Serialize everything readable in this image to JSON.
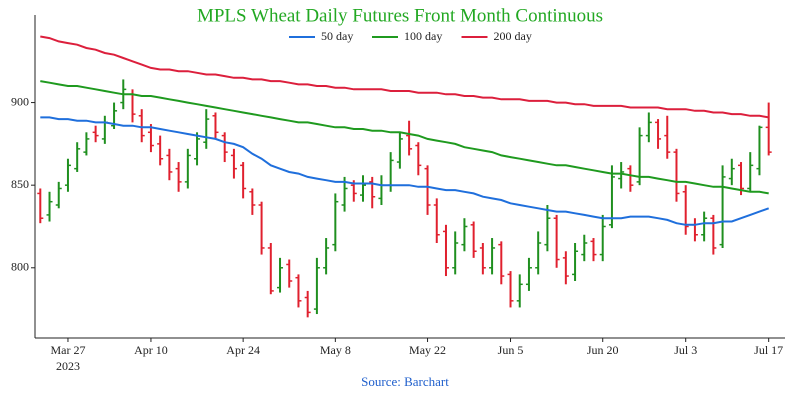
{
  "chart_data": {
    "type": "ohlc",
    "title": "MPLS Wheat Daily Futures Front Month Continuous",
    "source": "Source: Barchart",
    "categories": [
      null,
      null,
      null,
      "Mar 27",
      null,
      null,
      null,
      null,
      null,
      null,
      null,
      null,
      "Apr 10",
      null,
      null,
      null,
      null,
      null,
      null,
      null,
      null,
      null,
      "Apr 24",
      null,
      null,
      null,
      null,
      null,
      null,
      null,
      null,
      null,
      "May 8",
      null,
      null,
      null,
      null,
      null,
      null,
      null,
      null,
      null,
      "May 22",
      null,
      null,
      null,
      null,
      null,
      null,
      null,
      null,
      "Jun 5",
      null,
      null,
      null,
      null,
      null,
      null,
      null,
      null,
      null,
      "Jun 20",
      null,
      null,
      null,
      null,
      null,
      null,
      null,
      null,
      "Jul 3",
      null,
      null,
      null,
      null,
      null,
      null,
      null,
      null,
      "Jul 17"
    ],
    "x_year": "2023",
    "ohlc": {
      "up_color": "#1f8f1f",
      "down_color": "#e0202e",
      "open": [
        845,
        832,
        838,
        850,
        860,
        870,
        882,
        878,
        886,
        900,
        905,
        892,
        882,
        875,
        868,
        860,
        852,
        866,
        876,
        892,
        880,
        868,
        862,
        846,
        838,
        812,
        788,
        802,
        794,
        782,
        775,
        800,
        814,
        838,
        850,
        844,
        852,
        842,
        850,
        864,
        880,
        874,
        860,
        838,
        822,
        800,
        814,
        826,
        812,
        800,
        814,
        796,
        780,
        790,
        800,
        814,
        830,
        806,
        796,
        808,
        816,
        808,
        826,
        854,
        860,
        852,
        880,
        888,
        880,
        870,
        846,
        826,
        820,
        830,
        814,
        854,
        862,
        848,
        860,
        885
      ],
      "high": [
        848,
        846,
        852,
        866,
        876,
        882,
        886,
        892,
        900,
        914,
        908,
        896,
        887,
        880,
        872,
        864,
        872,
        882,
        896,
        894,
        882,
        872,
        864,
        848,
        840,
        815,
        806,
        805,
        796,
        786,
        806,
        818,
        845,
        855,
        853,
        856,
        855,
        856,
        870,
        882,
        889,
        876,
        862,
        842,
        826,
        822,
        830,
        828,
        815,
        818,
        816,
        798,
        796,
        806,
        822,
        838,
        832,
        810,
        815,
        820,
        818,
        832,
        862,
        864,
        862,
        885,
        894,
        890,
        892,
        872,
        850,
        830,
        834,
        832,
        862,
        866,
        864,
        870,
        886,
        900
      ],
      "low": [
        827,
        828,
        836,
        846,
        858,
        868,
        876,
        875,
        884,
        896,
        888,
        876,
        870,
        862,
        853,
        846,
        848,
        862,
        872,
        878,
        864,
        854,
        842,
        832,
        808,
        784,
        785,
        788,
        776,
        770,
        772,
        796,
        810,
        834,
        840,
        840,
        836,
        838,
        846,
        860,
        868,
        856,
        832,
        815,
        795,
        796,
        810,
        806,
        796,
        796,
        790,
        776,
        776,
        786,
        796,
        810,
        800,
        790,
        792,
        804,
        804,
        804,
        824,
        848,
        846,
        850,
        876,
        872,
        866,
        840,
        820,
        816,
        816,
        808,
        812,
        850,
        844,
        846,
        856,
        868
      ],
      "close": [
        830,
        840,
        848,
        862,
        872,
        878,
        880,
        888,
        895,
        908,
        893,
        880,
        874,
        866,
        858,
        852,
        868,
        878,
        890,
        882,
        870,
        860,
        848,
        838,
        812,
        786,
        800,
        792,
        780,
        773,
        800,
        812,
        840,
        848,
        845,
        850,
        843,
        850,
        865,
        878,
        872,
        862,
        838,
        820,
        800,
        815,
        825,
        810,
        800,
        812,
        795,
        780,
        790,
        800,
        815,
        830,
        805,
        795,
        810,
        815,
        808,
        825,
        855,
        858,
        850,
        880,
        888,
        878,
        870,
        845,
        825,
        820,
        830,
        812,
        855,
        860,
        848,
        862,
        885,
        870
      ]
    },
    "series": [
      {
        "name": "50 day",
        "color": "#1f6fdc",
        "values": [
          891,
          891,
          890,
          890,
          889,
          889,
          888,
          888,
          887,
          886,
          886,
          885,
          885,
          884,
          883,
          882,
          881,
          880,
          879,
          878,
          876,
          875,
          873,
          869,
          866,
          862,
          860,
          858,
          857,
          855,
          854,
          853,
          852,
          852,
          851,
          851,
          851,
          850,
          850,
          850,
          850,
          849,
          849,
          848,
          847,
          847,
          846,
          845,
          843,
          842,
          841,
          839,
          838,
          837,
          836,
          835,
          834,
          834,
          833,
          832,
          831,
          830,
          830,
          830,
          831,
          831,
          831,
          830,
          829,
          827,
          826,
          826,
          827,
          827,
          828,
          828,
          830,
          832,
          834,
          836
        ]
      },
      {
        "name": "100 day",
        "color": "#1f9a1f",
        "values": [
          913,
          912,
          911,
          910,
          910,
          909,
          908,
          907,
          906,
          905,
          905,
          904,
          904,
          903,
          902,
          901,
          900,
          899,
          898,
          897,
          896,
          895,
          894,
          893,
          892,
          891,
          890,
          889,
          888,
          888,
          887,
          886,
          885,
          885,
          884,
          884,
          883,
          883,
          882,
          882,
          881,
          880,
          878,
          877,
          876,
          875,
          873,
          872,
          871,
          870,
          868,
          867,
          866,
          865,
          864,
          863,
          862,
          862,
          861,
          860,
          859,
          858,
          857,
          857,
          856,
          855,
          855,
          854,
          853,
          852,
          852,
          851,
          850,
          849,
          849,
          848,
          847,
          846,
          846,
          845
        ]
      },
      {
        "name": "200 day",
        "color": "#dc1f3c",
        "values": [
          940,
          939,
          937,
          936,
          935,
          933,
          932,
          930,
          929,
          927,
          925,
          923,
          921,
          920,
          920,
          919,
          919,
          918,
          917,
          917,
          916,
          915,
          915,
          914,
          914,
          913,
          913,
          912,
          911,
          911,
          910,
          910,
          909,
          909,
          908,
          908,
          908,
          908,
          907,
          907,
          907,
          906,
          906,
          906,
          905,
          905,
          904,
          904,
          903,
          903,
          902,
          902,
          902,
          901,
          901,
          901,
          900,
          900,
          899,
          899,
          898,
          898,
          898,
          898,
          897,
          897,
          897,
          897,
          896,
          896,
          896,
          895,
          895,
          894,
          894,
          893,
          893,
          892,
          892,
          891
        ]
      }
    ],
    "ylim": [
      757.5,
      953
    ],
    "yticks": [
      800,
      850,
      900
    ],
    "grid": false,
    "legend": "top-center"
  }
}
